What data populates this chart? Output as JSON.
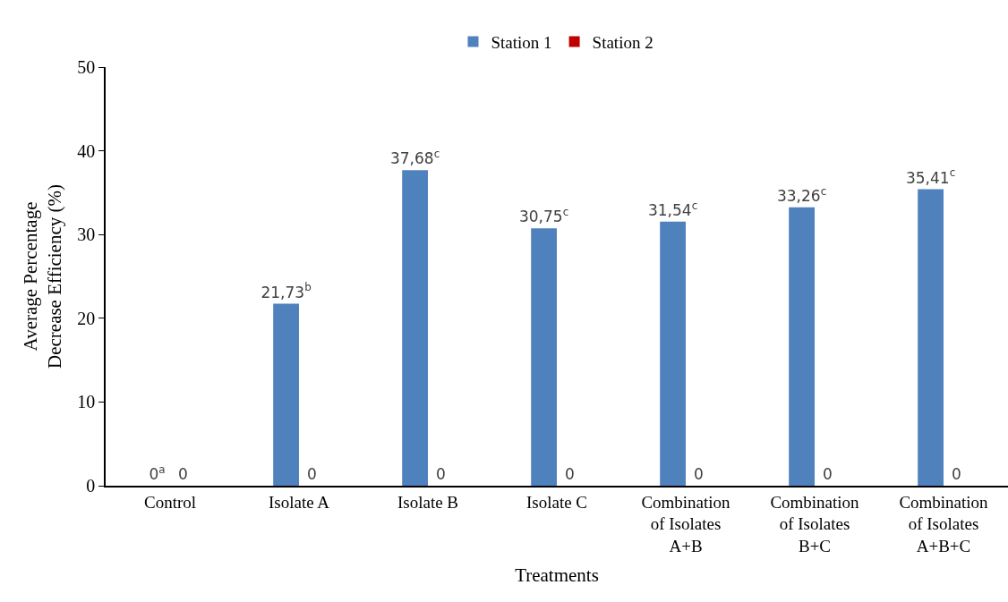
{
  "chart_data": {
    "type": "bar",
    "xlabel": "Treatments",
    "ylabel": "Average Percentage\nDecrease Efficiency (%)",
    "categories": [
      "Control",
      "Isolate A",
      "Isolate B",
      "Isolate C",
      "Combination\nof Isolates\nA+B",
      "Combination\nof Isolates\nB+C",
      "Combination\nof Isolates\nA+B+C"
    ],
    "series": [
      {
        "name": "Station 1",
        "color": "#4f81bd",
        "values": [
          0,
          21.73,
          37.68,
          30.75,
          31.54,
          33.26,
          35.41
        ],
        "value_labels": [
          "0$^{a}$",
          "21,73$^{b}$",
          "37,68$^{c}$",
          "30,75$^{c}$",
          "31,54$^{c}$",
          "33,26$^{c}$",
          "35,41$^{c}$"
        ]
      },
      {
        "name": "Station 2",
        "color": "#c00000",
        "values": [
          0,
          0,
          0,
          0,
          0,
          0,
          0
        ],
        "value_labels": [
          "0",
          "0",
          "0",
          "0",
          "0",
          "0",
          "0"
        ]
      }
    ],
    "ylim": [
      0,
      50
    ],
    "yticks": [
      0,
      10,
      20,
      30,
      40,
      50
    ],
    "grid": false,
    "legend": "top"
  }
}
